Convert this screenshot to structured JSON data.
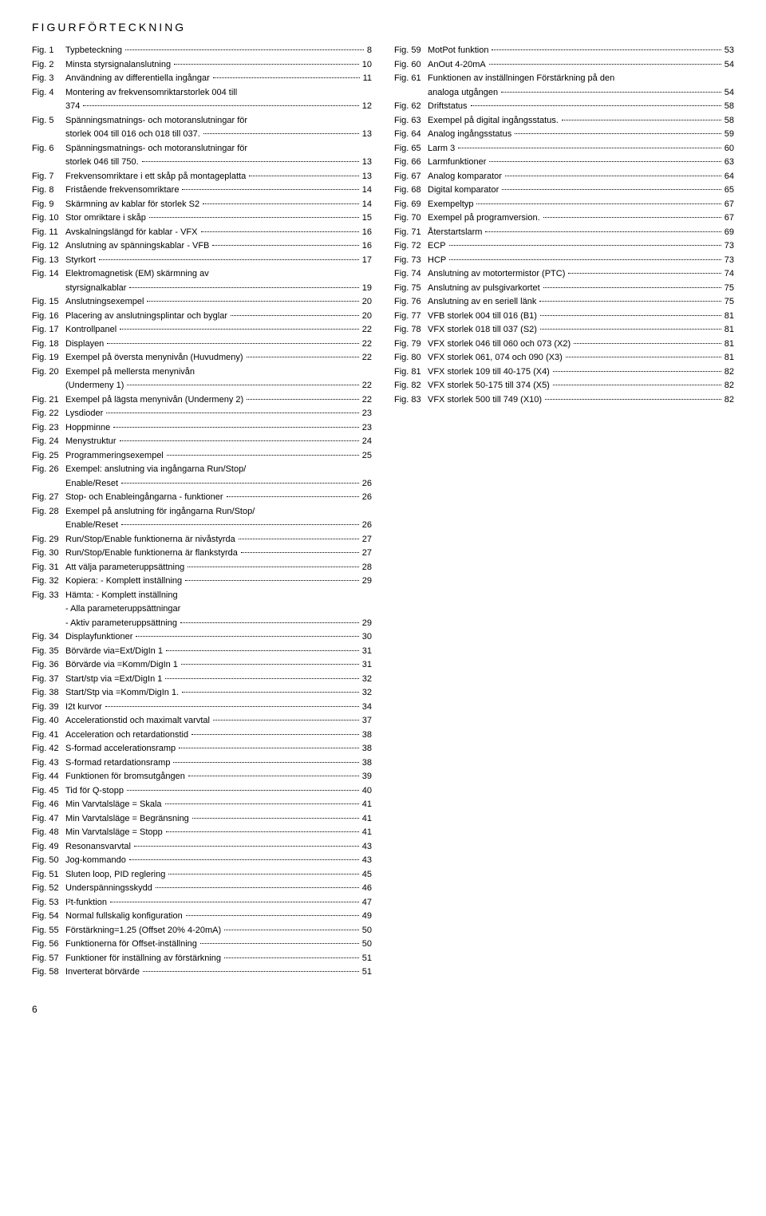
{
  "heading": "FIGURFÖRTECKNING",
  "pageNumber": "6",
  "left": [
    {
      "n": "Fig. 1",
      "t": "Typbeteckning",
      "p": "8"
    },
    {
      "n": "Fig. 2",
      "t": "Minsta styrsignalanslutning",
      "p": "10"
    },
    {
      "n": "Fig. 3",
      "t": "Användning av differentiella ingångar",
      "p": "11"
    },
    {
      "n": "Fig. 4",
      "t": "Montering av frekvensomriktarstorlek 004 till",
      "p": ""
    },
    {
      "n": "",
      "t": "374",
      "p": "12",
      "sub": true
    },
    {
      "n": "Fig. 5",
      "t": "Spänningsmatnings- och motoranslutningar för",
      "p": ""
    },
    {
      "n": "",
      "t": "storlek 004 till 016 och 018 till 037.",
      "p": "13",
      "sub": true
    },
    {
      "n": "Fig. 6",
      "t": "Spänningsmatnings- och motoranslutningar för",
      "p": ""
    },
    {
      "n": "",
      "t": "storlek 046 till 750.",
      "p": "13",
      "sub": true
    },
    {
      "n": "Fig. 7",
      "t": "Frekvensomriktare i ett skåp på montageplatta",
      "p": "13"
    },
    {
      "n": "Fig. 8",
      "t": "Fristående frekvensomriktare",
      "p": "14"
    },
    {
      "n": "Fig. 9",
      "t": "Skärmning av kablar för storlek S2",
      "p": "14"
    },
    {
      "n": "Fig. 10",
      "t": "Stor omriktare i skåp",
      "p": "15"
    },
    {
      "n": "Fig. 11",
      "t": "Avskalningslängd för kablar - VFX",
      "p": "16"
    },
    {
      "n": "Fig. 12",
      "t": "Anslutning av spänningskablar - VFB",
      "p": "16"
    },
    {
      "n": "Fig. 13",
      "t": "Styrkort",
      "p": "17"
    },
    {
      "n": "Fig. 14",
      "t": "Elektromagnetisk (EM) skärmning av",
      "p": ""
    },
    {
      "n": "",
      "t": "styrsignalkablar",
      "p": "19",
      "sub": true
    },
    {
      "n": "Fig. 15",
      "t": "Anslutningsexempel",
      "p": "20"
    },
    {
      "n": "Fig. 16",
      "t": "Placering av anslutningsplintar och byglar",
      "p": "20"
    },
    {
      "n": "Fig. 17",
      "t": "Kontrollpanel",
      "p": "22"
    },
    {
      "n": "Fig. 18",
      "t": "Displayen",
      "p": "22"
    },
    {
      "n": "Fig. 19",
      "t": "Exempel på översta menynivån (Huvudmeny)",
      "p": "22"
    },
    {
      "n": "Fig. 20",
      "t": "Exempel på mellersta menynivån",
      "p": ""
    },
    {
      "n": "",
      "t": "(Undermeny 1)",
      "p": "22",
      "sub": true
    },
    {
      "n": "Fig. 21",
      "t": "Exempel på lägsta menynivån (Undermeny 2)",
      "p": "22"
    },
    {
      "n": "Fig. 22",
      "t": "Lysdioder",
      "p": "23"
    },
    {
      "n": "Fig. 23",
      "t": "Hoppminne",
      "p": "23"
    },
    {
      "n": "Fig. 24",
      "t": "Menystruktur",
      "p": "24"
    },
    {
      "n": "Fig. 25",
      "t": "Programmeringsexempel",
      "p": "25"
    },
    {
      "n": "Fig. 26",
      "t": "Exempel: anslutning via ingångarna Run/Stop/",
      "p": ""
    },
    {
      "n": "",
      "t": "Enable/Reset",
      "p": "26",
      "sub": true
    },
    {
      "n": "Fig. 27",
      "t": "Stop- och Enableingångarna - funktioner",
      "p": "26"
    },
    {
      "n": "Fig. 28",
      "t": "Exempel på anslutning för ingångarna Run/Stop/",
      "p": ""
    },
    {
      "n": "",
      "t": "Enable/Reset",
      "p": "26",
      "sub": true
    },
    {
      "n": "Fig. 29",
      "t": "Run/Stop/Enable funktionerna är nivåstyrda",
      "p": "27"
    },
    {
      "n": "Fig. 30",
      "t": "Run/Stop/Enable funktionerna är flankstyrda",
      "p": "27"
    },
    {
      "n": "Fig. 31",
      "t": "Att välja parameteruppsättning",
      "p": "28"
    },
    {
      "n": "Fig. 32",
      "t": "Kopiera: - Komplett inställning",
      "p": "29"
    },
    {
      "n": "Fig. 33",
      "t": "Hämta: - Komplett inställning",
      "p": ""
    },
    {
      "n": "",
      "t": "- Alla parameteruppsättningar",
      "p": "",
      "sub": true,
      "nodots": true
    },
    {
      "n": "",
      "t": "- Aktiv parameteruppsättning",
      "p": "29",
      "sub": true
    },
    {
      "n": "Fig. 34",
      "t": "Displayfunktioner",
      "p": "30"
    },
    {
      "n": "Fig. 35",
      "t": "Börvärde via=Ext/DigIn 1",
      "p": "31"
    },
    {
      "n": "Fig. 36",
      "t": "Börvärde via =Komm/DigIn 1",
      "p": "31"
    },
    {
      "n": "Fig. 37",
      "t": "Start/stp via =Ext/DigIn 1",
      "p": "32"
    },
    {
      "n": "Fig. 38",
      "t": "Start/Stp via =Komm/DigIn 1.",
      "p": "32"
    },
    {
      "n": "Fig. 39",
      "t": "I2t kurvor",
      "p": "34"
    },
    {
      "n": "Fig. 40",
      "t": "Accelerationstid och maximalt varvtal",
      "p": "37"
    },
    {
      "n": "Fig. 41",
      "t": "Acceleration och retardationstid",
      "p": "38"
    },
    {
      "n": "Fig. 42",
      "t": "S-formad accelerationsramp",
      "p": "38"
    },
    {
      "n": "Fig. 43",
      "t": "S-formad retardationsramp",
      "p": "38"
    },
    {
      "n": "Fig. 44",
      "t": "Funktionen för bromsutgången",
      "p": "39"
    },
    {
      "n": "Fig. 45",
      "t": "Tid för Q-stopp",
      "p": "40"
    },
    {
      "n": "Fig. 46",
      "t": "Min Varvtalsläge = Skala",
      "p": "41"
    },
    {
      "n": "Fig. 47",
      "t": "Min Varvtalsläge = Begränsning",
      "p": "41"
    },
    {
      "n": "Fig. 48",
      "t": "Min Varvtalsläge = Stopp",
      "p": "41"
    },
    {
      "n": "Fig. 49",
      "t": "Resonansvarvtal",
      "p": "43"
    },
    {
      "n": "Fig. 50",
      "t": "Jog-kommando",
      "p": "43"
    },
    {
      "n": "Fig. 51",
      "t": "Sluten loop, PID reglering",
      "p": "45"
    },
    {
      "n": "Fig. 52",
      "t": "Underspänningsskydd",
      "p": "46"
    },
    {
      "n": "Fig. 53",
      "t": "I²t-funktion",
      "p": "47"
    },
    {
      "n": "Fig. 54",
      "t": "Normal fullskalig konfiguration",
      "p": "49"
    },
    {
      "n": "Fig. 55",
      "t": "Förstärkning=1.25 (Offset 20% 4-20mA)",
      "p": "50"
    },
    {
      "n": "Fig. 56",
      "t": "Funktionerna för Offset-inställning",
      "p": "50"
    },
    {
      "n": "Fig. 57",
      "t": "Funktioner för inställning av förstärkning",
      "p": "51"
    },
    {
      "n": "Fig. 58",
      "t": "Inverterat börvärde",
      "p": "51"
    }
  ],
  "right": [
    {
      "n": "Fig. 59",
      "t": "MotPot funktion",
      "p": "53"
    },
    {
      "n": "Fig. 60",
      "t": "AnOut 4-20mA",
      "p": "54"
    },
    {
      "n": "Fig. 61",
      "t": "Funktionen av inställningen Förstärkning på den",
      "p": ""
    },
    {
      "n": "",
      "t": "analoga utgången",
      "p": "54",
      "sub": true
    },
    {
      "n": "Fig. 62",
      "t": "Driftstatus",
      "p": "58"
    },
    {
      "n": "Fig. 63",
      "t": "Exempel på digital ingångsstatus.",
      "p": "58"
    },
    {
      "n": "Fig. 64",
      "t": "Analog ingångsstatus",
      "p": "59"
    },
    {
      "n": "Fig. 65",
      "t": "Larm 3",
      "p": "60"
    },
    {
      "n": "Fig. 66",
      "t": "Larmfunktioner",
      "p": "63"
    },
    {
      "n": "Fig. 67",
      "t": "Analog komparator",
      "p": "64"
    },
    {
      "n": "Fig. 68",
      "t": "Digital komparator",
      "p": "65"
    },
    {
      "n": "Fig. 69",
      "t": "Exempeltyp",
      "p": "67"
    },
    {
      "n": "Fig. 70",
      "t": "Exempel på programversion.",
      "p": "67"
    },
    {
      "n": "Fig. 71",
      "t": "Återstartslarm",
      "p": "69"
    },
    {
      "n": "Fig. 72",
      "t": "ECP",
      "p": "73"
    },
    {
      "n": "Fig. 73",
      "t": "HCP",
      "p": "73"
    },
    {
      "n": "Fig. 74",
      "t": "Anslutning av motortermistor (PTC)",
      "p": "74"
    },
    {
      "n": "Fig. 75",
      "t": "Anslutning av pulsgivarkortet",
      "p": "75"
    },
    {
      "n": "Fig. 76",
      "t": "Anslutning av en seriell länk",
      "p": "75"
    },
    {
      "n": "Fig. 77",
      "t": "VFB storlek 004 till 016 (B1)",
      "p": "81"
    },
    {
      "n": "Fig. 78",
      "t": "VFX storlek 018 till 037 (S2)",
      "p": "81"
    },
    {
      "n": "Fig. 79",
      "t": "VFX storlek 046 till 060 och 073 (X2)",
      "p": "81"
    },
    {
      "n": "Fig. 80",
      "t": "VFX storlek 061, 074 och 090 (X3)",
      "p": "81"
    },
    {
      "n": "Fig. 81",
      "t": "VFX storlek 109 till 40-175 (X4)",
      "p": "82"
    },
    {
      "n": "Fig. 82",
      "t": "VFX storlek 50-175 till 374 (X5)",
      "p": "82"
    },
    {
      "n": "Fig. 83",
      "t": "VFX storlek 500 till 749 (X10)",
      "p": "82"
    }
  ]
}
